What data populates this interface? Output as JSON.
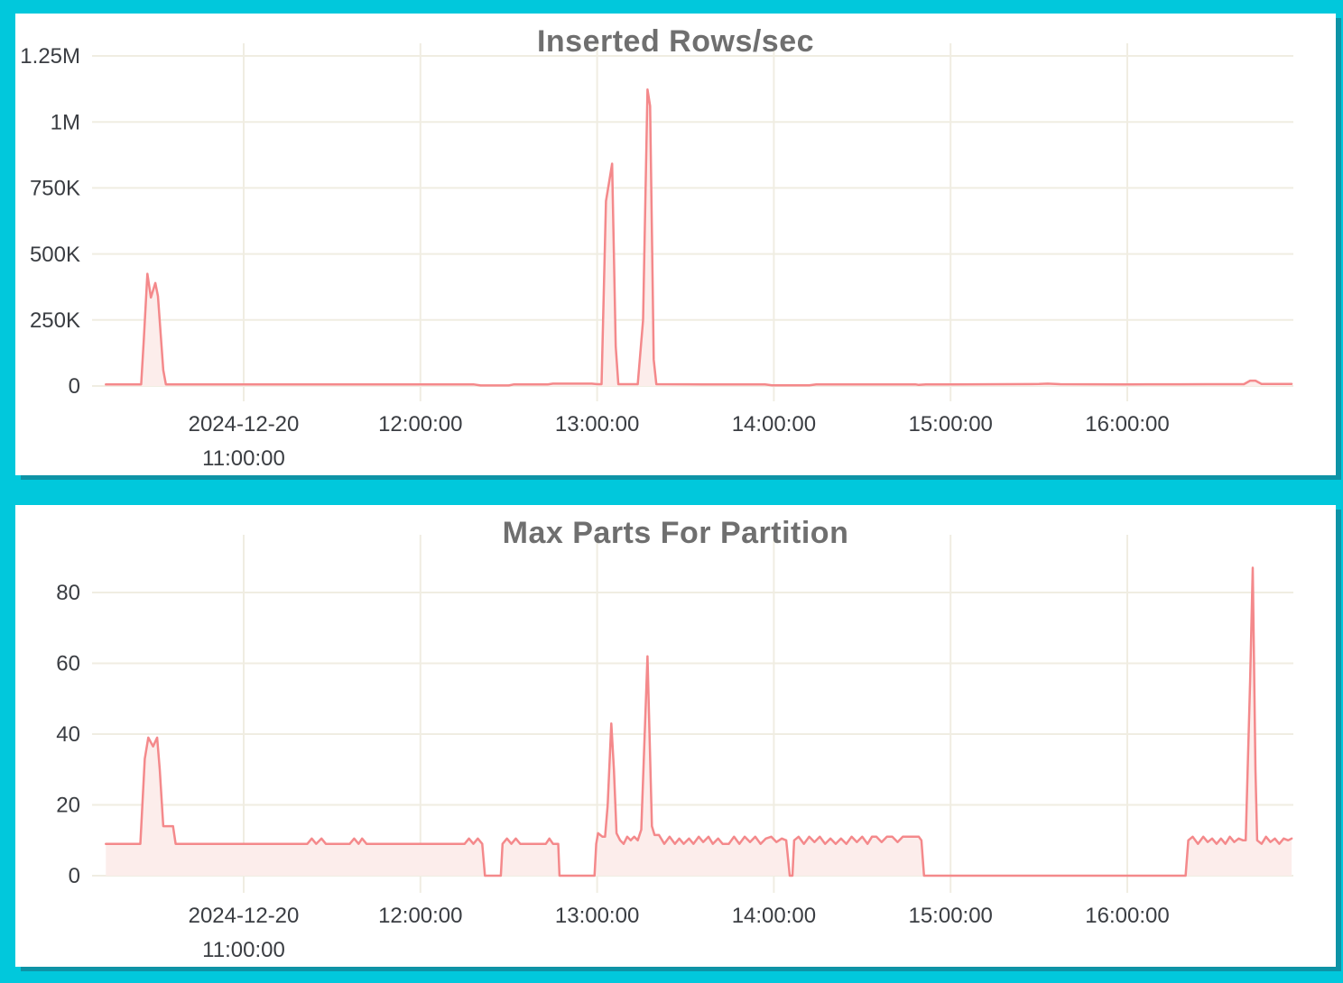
{
  "page": {
    "background_color": "#01c8dc",
    "panel_shadow_color": "#0e93a6",
    "panel_background": "#ffffff"
  },
  "style": {
    "line_color": "#f4898b",
    "fill_color": "#fcedeb",
    "grid_color": "#f0ede2",
    "title_color": "#6f6f6f",
    "tick_color": "#3a3d42"
  },
  "chart_data": [
    {
      "type": "area",
      "title": "Inserted Rows/sec",
      "xlabel": "",
      "ylabel": "",
      "grid": true,
      "legend": false,
      "ylim": [
        0,
        1250000
      ],
      "x_unit": "hour-of-day on 2024-12-20",
      "xlim": [
        10.22,
        16.93
      ],
      "y_ticks": [
        {
          "v": 0,
          "label": "0"
        },
        {
          "v": 250000,
          "label": "250K"
        },
        {
          "v": 500000,
          "label": "500K"
        },
        {
          "v": 750000,
          "label": "750K"
        },
        {
          "v": 1000000,
          "label": "1M"
        },
        {
          "v": 1250000,
          "label": "1.25M"
        }
      ],
      "x_ticks": [
        {
          "t": 11,
          "lines": [
            "2024-12-20",
            "11:00:00"
          ]
        },
        {
          "t": 12,
          "lines": [
            "12:00:00"
          ]
        },
        {
          "t": 13,
          "lines": [
            "13:00:00"
          ]
        },
        {
          "t": 14,
          "lines": [
            "14:00:00"
          ]
        },
        {
          "t": 15,
          "lines": [
            "15:00:00"
          ]
        },
        {
          "t": 16,
          "lines": [
            "16:00:00"
          ]
        }
      ],
      "series": [
        {
          "name": "inserted rows per second",
          "points": [
            [
              10.22,
              6000
            ],
            [
              10.42,
              6000
            ],
            [
              10.435,
              180000
            ],
            [
              10.455,
              425000
            ],
            [
              10.475,
              335000
            ],
            [
              10.5,
              390000
            ],
            [
              10.515,
              340000
            ],
            [
              10.545,
              60000
            ],
            [
              10.56,
              6000
            ],
            [
              11,
              6000
            ],
            [
              12.3,
              6000
            ],
            [
              12.34,
              2000
            ],
            [
              12.5,
              2000
            ],
            [
              12.53,
              6000
            ],
            [
              12.72,
              6000
            ],
            [
              12.75,
              9000
            ],
            [
              12.97,
              9000
            ],
            [
              13,
              7000
            ],
            [
              13.025,
              7000
            ],
            [
              13.05,
              700000
            ],
            [
              13.065,
              760000
            ],
            [
              13.085,
              842000
            ],
            [
              13.105,
              150000
            ],
            [
              13.12,
              7000
            ],
            [
              13.23,
              7000
            ],
            [
              13.26,
              250000
            ],
            [
              13.285,
              1123000
            ],
            [
              13.3,
              1060000
            ],
            [
              13.32,
              100000
            ],
            [
              13.335,
              7000
            ],
            [
              13.6,
              6000
            ],
            [
              13.95,
              6000
            ],
            [
              13.99,
              2500
            ],
            [
              14.2,
              2500
            ],
            [
              14.24,
              6000
            ],
            [
              14.6,
              6000
            ],
            [
              14.8,
              6000
            ],
            [
              14.82,
              4000
            ],
            [
              14.86,
              6000
            ],
            [
              15,
              6000
            ],
            [
              15.5,
              7500
            ],
            [
              15.55,
              9000
            ],
            [
              15.62,
              7000
            ],
            [
              16,
              6000
            ],
            [
              16.3,
              6500
            ],
            [
              16.45,
              7000
            ],
            [
              16.66,
              7000
            ],
            [
              16.695,
              20000
            ],
            [
              16.725,
              20000
            ],
            [
              16.76,
              7500
            ],
            [
              16.93,
              8000
            ]
          ]
        }
      ]
    },
    {
      "type": "area",
      "title": "Max Parts For Partition",
      "xlabel": "",
      "ylabel": "",
      "grid": true,
      "legend": false,
      "ylim": [
        0,
        91.6
      ],
      "x_unit": "hour-of-day on 2024-12-20",
      "xlim": [
        10.22,
        16.93
      ],
      "y_ticks": [
        {
          "v": 0,
          "label": "0"
        },
        {
          "v": 20,
          "label": "20"
        },
        {
          "v": 40,
          "label": "40"
        },
        {
          "v": 60,
          "label": "60"
        },
        {
          "v": 80,
          "label": "80"
        }
      ],
      "x_ticks": [
        {
          "t": 11,
          "lines": [
            "2024-12-20",
            "11:00:00"
          ]
        },
        {
          "t": 12,
          "lines": [
            "12:00:00"
          ]
        },
        {
          "t": 13,
          "lines": [
            "13:00:00"
          ]
        },
        {
          "t": 14,
          "lines": [
            "14:00:00"
          ]
        },
        {
          "t": 15,
          "lines": [
            "15:00:00"
          ]
        },
        {
          "t": 16,
          "lines": [
            "16:00:00"
          ]
        }
      ],
      "series": [
        {
          "name": "max parts for partition",
          "points": [
            [
              10.22,
              9
            ],
            [
              10.415,
              9
            ],
            [
              10.44,
              33
            ],
            [
              10.46,
              39
            ],
            [
              10.487,
              36.5
            ],
            [
              10.51,
              39
            ],
            [
              10.525,
              30
            ],
            [
              10.545,
              14
            ],
            [
              10.6,
              14
            ],
            [
              10.615,
              9
            ],
            [
              10.8,
              9
            ],
            [
              11.1,
              9
            ],
            [
              11.36,
              9
            ],
            [
              11.385,
              10.5
            ],
            [
              11.41,
              9
            ],
            [
              11.44,
              10.5
            ],
            [
              11.465,
              9
            ],
            [
              11.6,
              9
            ],
            [
              11.625,
              10.5
            ],
            [
              11.65,
              9
            ],
            [
              11.67,
              10.5
            ],
            [
              11.695,
              9
            ],
            [
              12.1,
              9
            ],
            [
              12.25,
              9
            ],
            [
              12.275,
              10.5
            ],
            [
              12.3,
              9
            ],
            [
              12.325,
              10.5
            ],
            [
              12.35,
              9
            ],
            [
              12.365,
              0
            ],
            [
              12.455,
              0
            ],
            [
              12.465,
              9
            ],
            [
              12.49,
              10.5
            ],
            [
              12.515,
              9
            ],
            [
              12.54,
              10.5
            ],
            [
              12.565,
              9
            ],
            [
              12.71,
              9
            ],
            [
              12.73,
              10.5
            ],
            [
              12.75,
              9
            ],
            [
              12.78,
              9
            ],
            [
              12.787,
              0
            ],
            [
              12.985,
              0
            ],
            [
              12.995,
              9
            ],
            [
              13.005,
              12
            ],
            [
              13.03,
              11
            ],
            [
              13.045,
              11
            ],
            [
              13.06,
              20
            ],
            [
              13.08,
              43
            ],
            [
              13.095,
              30
            ],
            [
              13.11,
              12
            ],
            [
              13.13,
              10
            ],
            [
              13.15,
              9
            ],
            [
              13.17,
              11
            ],
            [
              13.19,
              10
            ],
            [
              13.21,
              11
            ],
            [
              13.23,
              10
            ],
            [
              13.25,
              13
            ],
            [
              13.285,
              62
            ],
            [
              13.31,
              14
            ],
            [
              13.325,
              11.5
            ],
            [
              13.35,
              11.5
            ],
            [
              13.38,
              9
            ],
            [
              13.41,
              11
            ],
            [
              13.44,
              9
            ],
            [
              13.465,
              10.5
            ],
            [
              13.49,
              9
            ],
            [
              13.52,
              10.5
            ],
            [
              13.545,
              9
            ],
            [
              13.575,
              11
            ],
            [
              13.6,
              9.5
            ],
            [
              13.63,
              11
            ],
            [
              13.655,
              9
            ],
            [
              13.685,
              10.5
            ],
            [
              13.71,
              9
            ],
            [
              13.745,
              9
            ],
            [
              13.775,
              11
            ],
            [
              13.805,
              9
            ],
            [
              13.835,
              11
            ],
            [
              13.865,
              9.5
            ],
            [
              13.895,
              11
            ],
            [
              13.925,
              9
            ],
            [
              13.955,
              10.5
            ],
            [
              13.985,
              11
            ],
            [
              14.015,
              9.5
            ],
            [
              14.045,
              10.5
            ],
            [
              14.07,
              10
            ],
            [
              14.09,
              0
            ],
            [
              14.105,
              0
            ],
            [
              14.115,
              10
            ],
            [
              14.14,
              11
            ],
            [
              14.17,
              9
            ],
            [
              14.2,
              11
            ],
            [
              14.23,
              9.5
            ],
            [
              14.26,
              11
            ],
            [
              14.29,
              9
            ],
            [
              14.32,
              10.5
            ],
            [
              14.35,
              9
            ],
            [
              14.38,
              10.5
            ],
            [
              14.41,
              9
            ],
            [
              14.44,
              11
            ],
            [
              14.47,
              9.5
            ],
            [
              14.5,
              11
            ],
            [
              14.53,
              9
            ],
            [
              14.555,
              11
            ],
            [
              14.58,
              11
            ],
            [
              14.61,
              9.5
            ],
            [
              14.64,
              11
            ],
            [
              14.67,
              11
            ],
            [
              14.7,
              9.5
            ],
            [
              14.73,
              11
            ],
            [
              14.76,
              11
            ],
            [
              14.79,
              11
            ],
            [
              14.82,
              11
            ],
            [
              14.835,
              10
            ],
            [
              14.85,
              0
            ],
            [
              16.33,
              0
            ],
            [
              16.345,
              10
            ],
            [
              16.37,
              11
            ],
            [
              16.4,
              9
            ],
            [
              16.43,
              11
            ],
            [
              16.455,
              9.5
            ],
            [
              16.48,
              10.5
            ],
            [
              16.505,
              9
            ],
            [
              16.53,
              10.5
            ],
            [
              16.555,
              9
            ],
            [
              16.58,
              11
            ],
            [
              16.605,
              9.5
            ],
            [
              16.63,
              10.5
            ],
            [
              16.655,
              10
            ],
            [
              16.67,
              10
            ],
            [
              16.695,
              55
            ],
            [
              16.71,
              87
            ],
            [
              16.725,
              30
            ],
            [
              16.735,
              10
            ],
            [
              16.76,
              9
            ],
            [
              16.785,
              11
            ],
            [
              16.81,
              9.5
            ],
            [
              16.835,
              10.5
            ],
            [
              16.86,
              9
            ],
            [
              16.885,
              10.5
            ],
            [
              16.91,
              10
            ],
            [
              16.93,
              10.5
            ]
          ]
        }
      ]
    }
  ]
}
